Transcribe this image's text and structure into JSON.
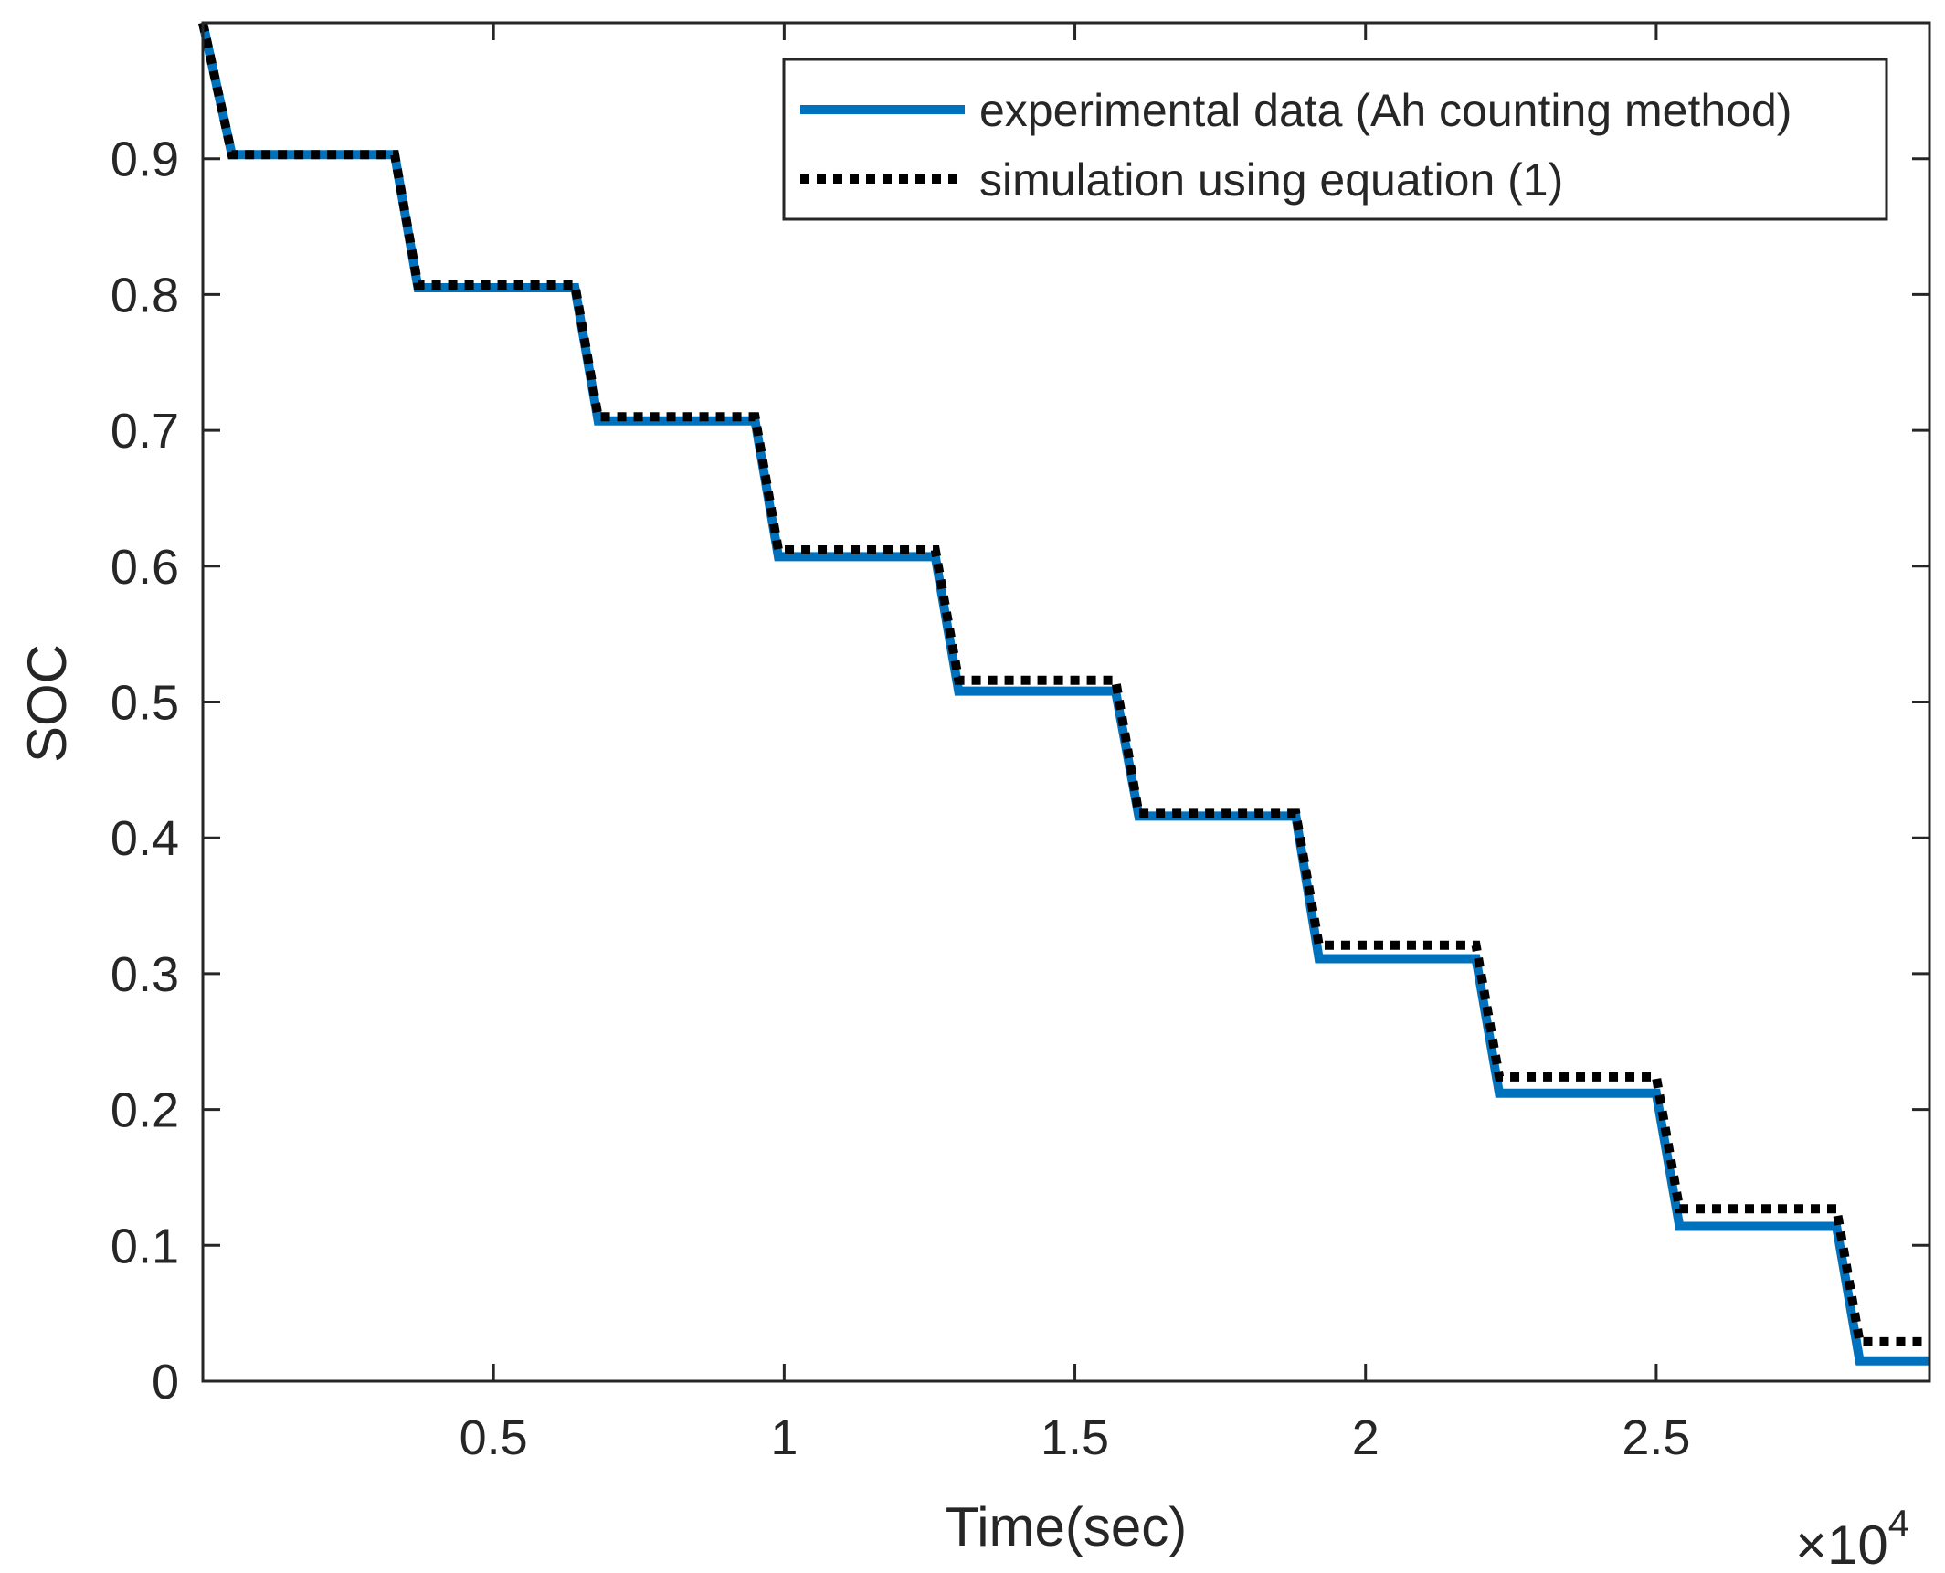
{
  "chart_data": {
    "type": "line",
    "title": "",
    "xlabel": "Time(sec)",
    "ylabel": "SOC",
    "x_exponent_label": "×10",
    "x_exponent_power": "4",
    "xlim": [
      0,
      29700
    ],
    "ylim": [
      0,
      1
    ],
    "grid": false,
    "legend_position": "top-right",
    "x_ticks": [
      {
        "value": 5000,
        "label": "0.5"
      },
      {
        "value": 10000,
        "label": "1"
      },
      {
        "value": 15000,
        "label": "1.5"
      },
      {
        "value": 20000,
        "label": "2"
      },
      {
        "value": 25000,
        "label": "2.5"
      }
    ],
    "y_ticks": [
      {
        "value": 0,
        "label": "0"
      },
      {
        "value": 0.1,
        "label": "0.1"
      },
      {
        "value": 0.2,
        "label": "0.2"
      },
      {
        "value": 0.3,
        "label": "0.3"
      },
      {
        "value": 0.4,
        "label": "0.4"
      },
      {
        "value": 0.5,
        "label": "0.5"
      },
      {
        "value": 0.6,
        "label": "0.6"
      },
      {
        "value": 0.7,
        "label": "0.7"
      },
      {
        "value": 0.8,
        "label": "0.8"
      },
      {
        "value": 0.9,
        "label": "0.9"
      }
    ],
    "series": [
      {
        "name": "experimental data (Ah counting method)",
        "color": "#0072BD",
        "style": "solid",
        "x": [
          0,
          500,
          3300,
          3700,
          6400,
          6800,
          9500,
          9900,
          12600,
          13000,
          15700,
          16100,
          18800,
          19200,
          21900,
          22300,
          25000,
          25400,
          28100,
          28500,
          29700
        ],
        "y": [
          1.0,
          0.903,
          0.903,
          0.805,
          0.805,
          0.707,
          0.707,
          0.607,
          0.607,
          0.508,
          0.508,
          0.416,
          0.416,
          0.311,
          0.311,
          0.212,
          0.212,
          0.114,
          0.114,
          0.015,
          0.015
        ]
      },
      {
        "name": "simulation using equation (1)",
        "color": "#000000",
        "style": "dotted",
        "x": [
          0,
          500,
          3300,
          3700,
          6400,
          6800,
          9500,
          9900,
          12600,
          13000,
          15700,
          16100,
          18800,
          19200,
          21900,
          22300,
          25000,
          25400,
          28100,
          28500,
          29700
        ],
        "y": [
          1.0,
          0.903,
          0.903,
          0.807,
          0.807,
          0.71,
          0.71,
          0.612,
          0.612,
          0.516,
          0.516,
          0.418,
          0.418,
          0.321,
          0.321,
          0.224,
          0.224,
          0.127,
          0.127,
          0.029,
          0.029
        ]
      }
    ]
  }
}
